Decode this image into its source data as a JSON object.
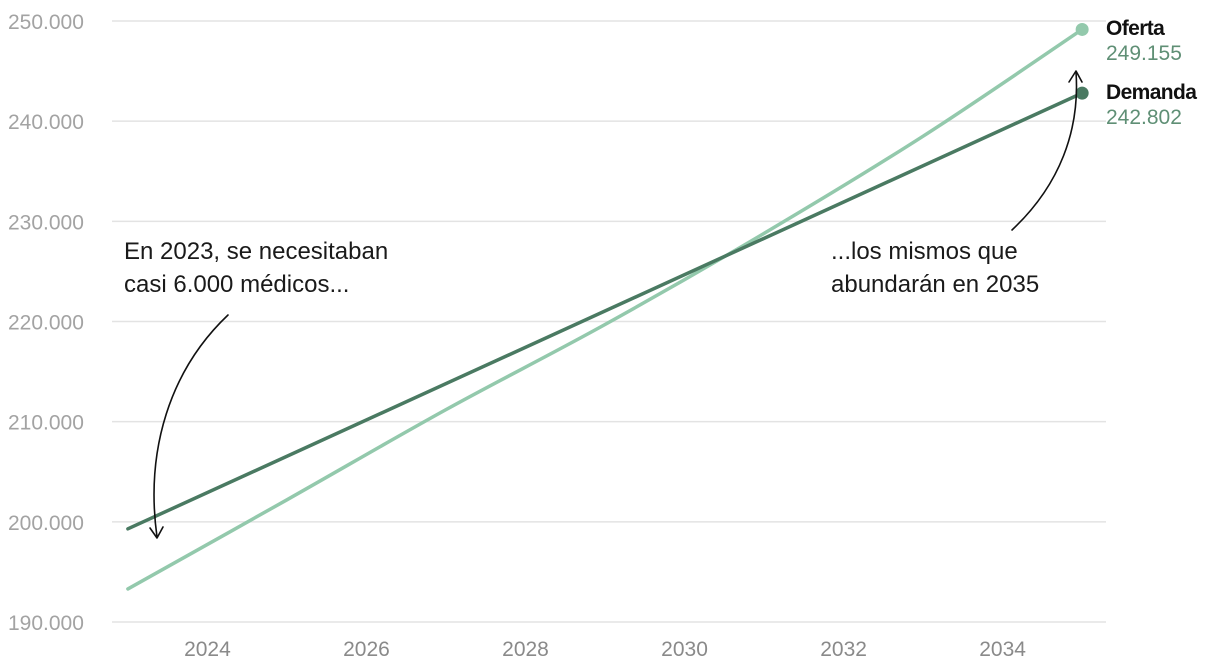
{
  "chart_data": {
    "type": "line",
    "x": [
      2023,
      2035
    ],
    "xticks": [
      2024,
      2026,
      2028,
      2030,
      2032,
      2034
    ],
    "xlim": [
      2022.8,
      2035.3
    ],
    "ylim": [
      190000,
      250000
    ],
    "yticks": [
      190000,
      200000,
      210000,
      220000,
      230000,
      240000,
      250000
    ],
    "ytick_labels": [
      "190.000",
      "200.000",
      "210.000",
      "220.000",
      "230.000",
      "240.000",
      "250.000"
    ],
    "grid": true,
    "series": [
      {
        "name": "Oferta",
        "color": "#93c9ac",
        "end_label": "249.155",
        "points": [
          [
            2023,
            193300
          ],
          [
            2025,
            202200
          ],
          [
            2027,
            211200
          ],
          [
            2029,
            219700
          ],
          [
            2031,
            228800
          ],
          [
            2033,
            238500
          ],
          [
            2035,
            249155
          ]
        ]
      },
      {
        "name": "Demanda",
        "color": "#4a7a62",
        "end_label": "242.802",
        "points": [
          [
            2023,
            199300
          ],
          [
            2035,
            242802
          ]
        ]
      }
    ],
    "annotations": [
      {
        "lines": [
          "En 2023, se necesitaban",
          "casi 6.000 médicos..."
        ]
      },
      {
        "lines": [
          "...los mismos que",
          "abundarán en 2035"
        ]
      }
    ]
  }
}
